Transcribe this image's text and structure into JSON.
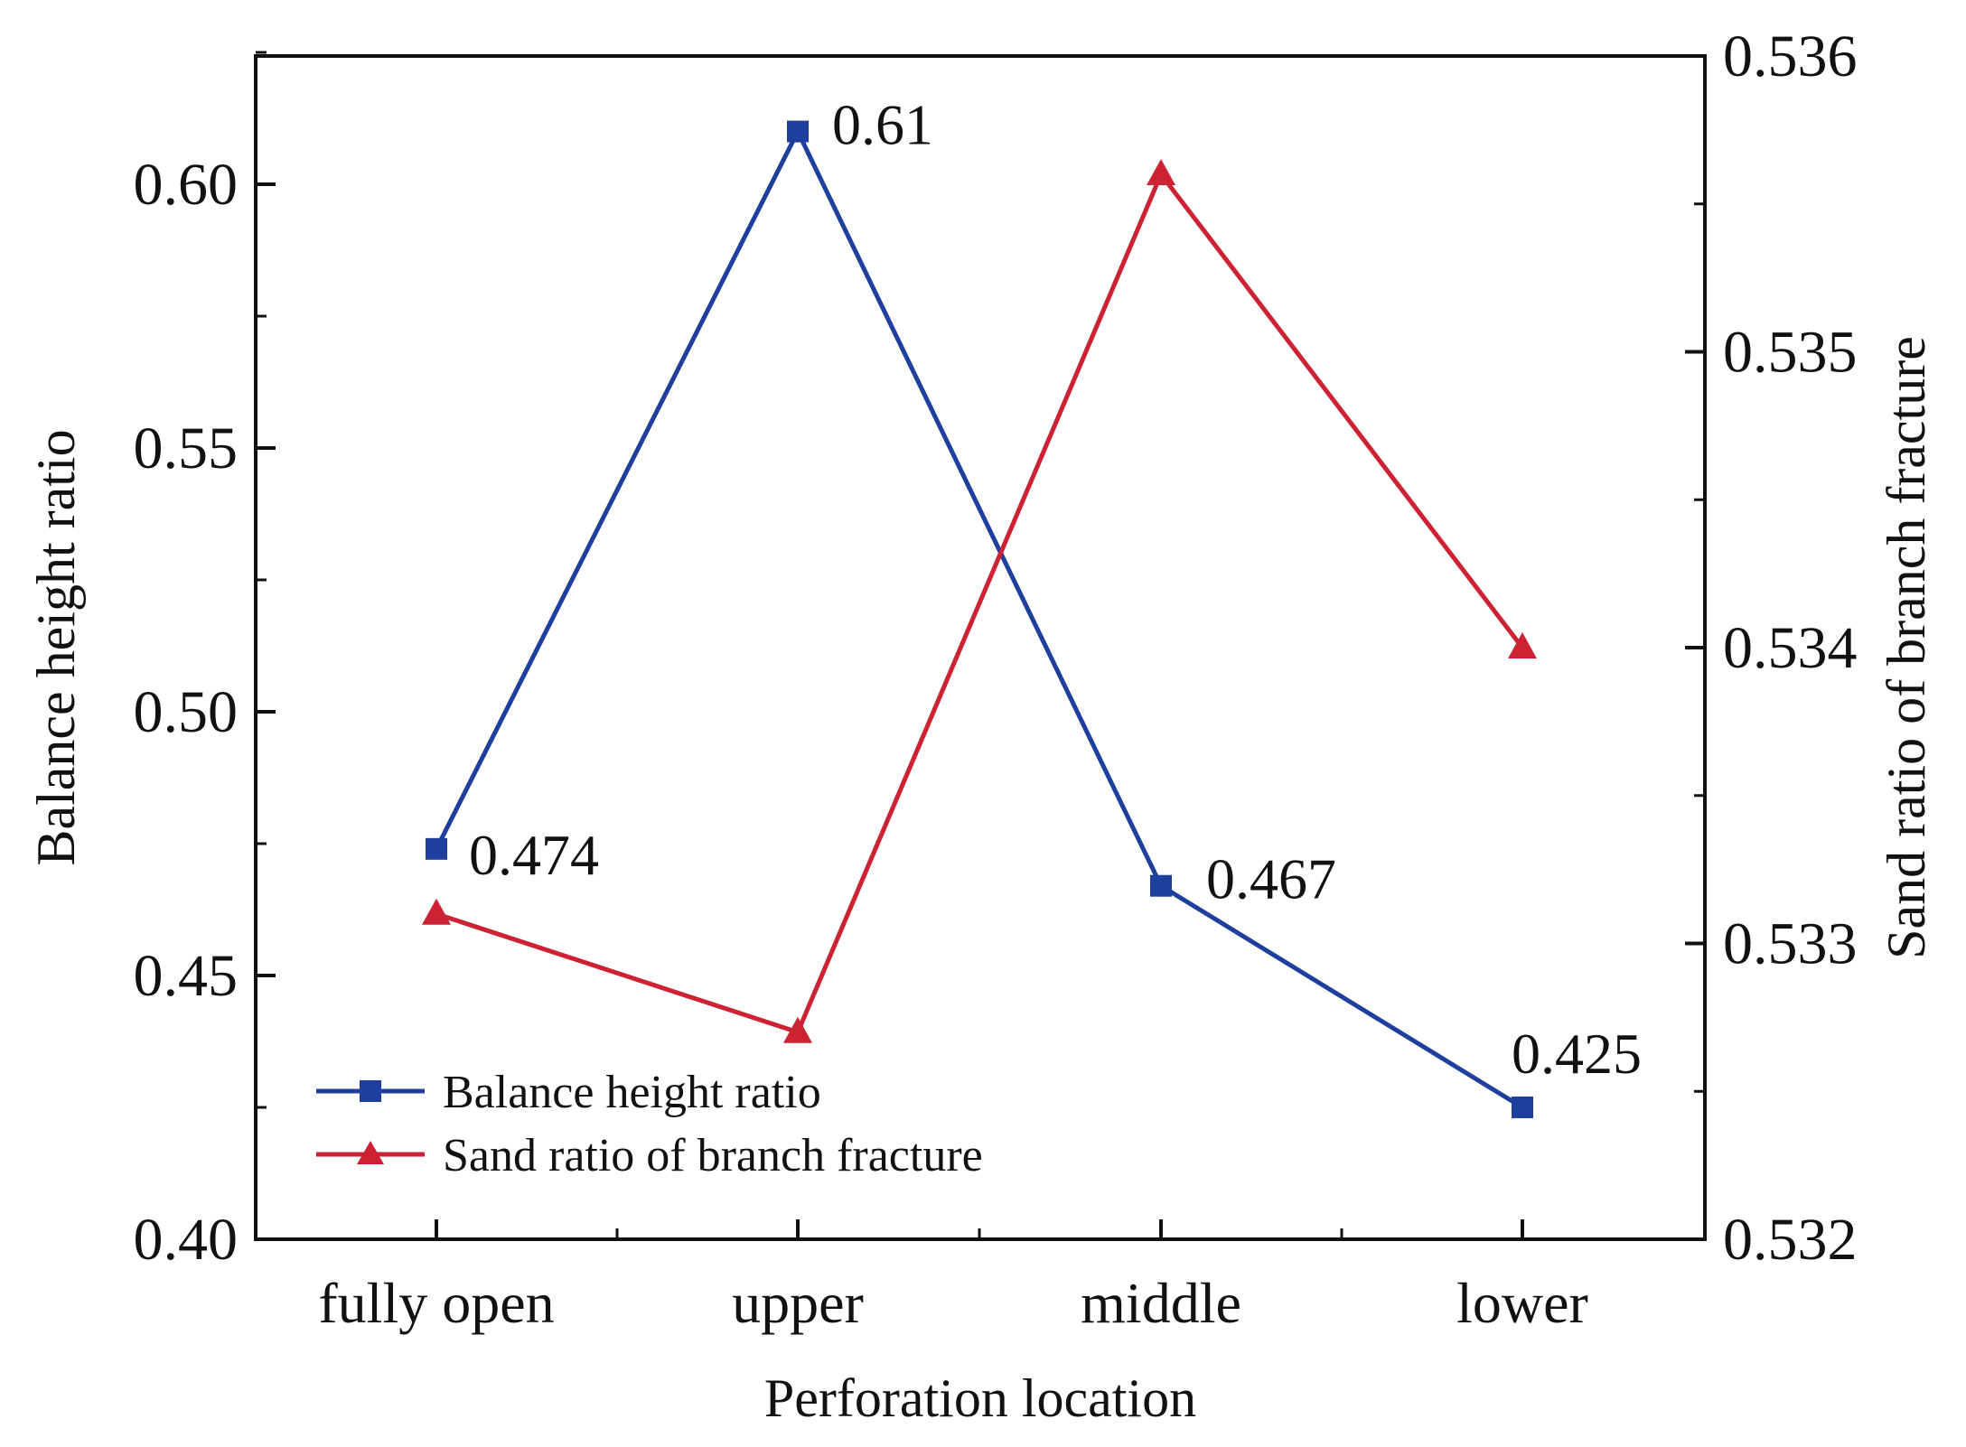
{
  "chart_data": {
    "type": "line",
    "title": "",
    "xlabel": "Perforation location",
    "ylabel": "Balance height ratio",
    "y2label": "Sand ratio of branch fracture",
    "categories": [
      "fully open",
      "upper",
      "middle",
      "lower"
    ],
    "ylim": [
      0.4,
      0.625
    ],
    "y2lim": [
      0.532,
      0.536
    ],
    "yticks": [
      "0.40",
      "0.45",
      "0.50",
      "0.55",
      "0.60"
    ],
    "y2ticks": [
      "0.532",
      "0.533",
      "0.534",
      "0.535",
      "0.536"
    ],
    "series": [
      {
        "name": "Balance height ratio",
        "axis": "left",
        "marker": "square",
        "color": "#1f3f9e",
        "values": [
          0.474,
          0.61,
          0.467,
          0.425
        ],
        "labels": [
          "0.474",
          "0.61",
          "0.467",
          "0.425"
        ]
      },
      {
        "name": "Sand ratio of branch fracture",
        "axis": "right",
        "marker": "triangle",
        "color": "#cc2233",
        "values": [
          0.5331,
          0.5327,
          0.5356,
          0.534
        ]
      }
    ],
    "legend": "bottom-left",
    "grid": false
  }
}
